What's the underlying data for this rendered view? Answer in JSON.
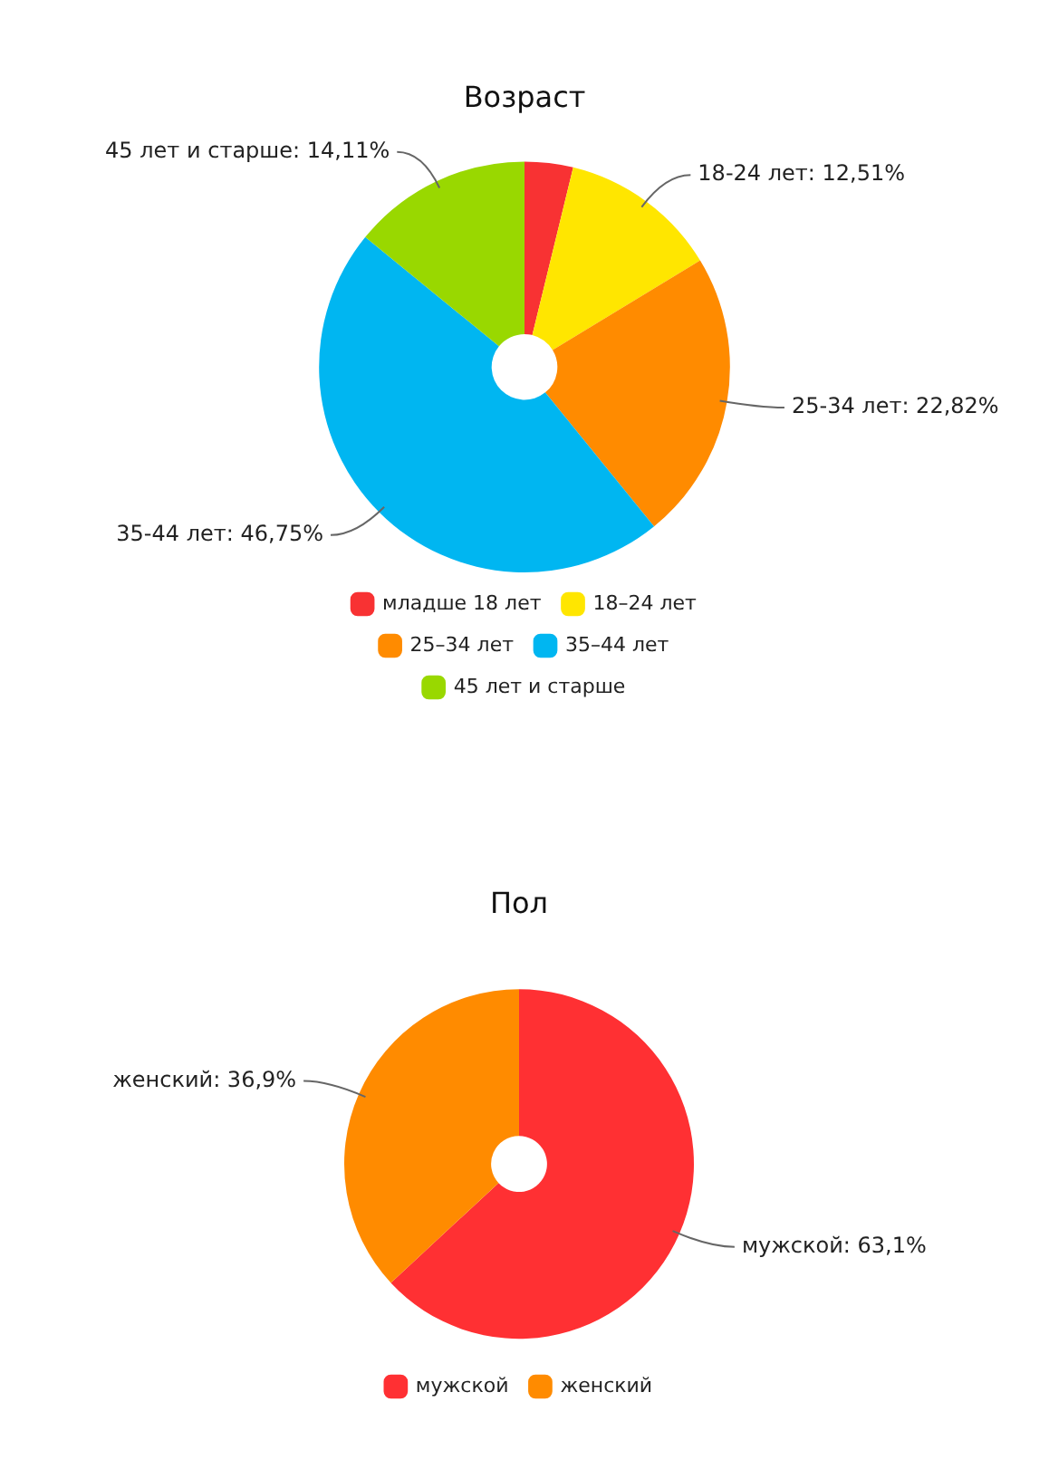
{
  "chart_data": [
    {
      "type": "donut",
      "title": "Возраст",
      "categories": [
        "младше 18 лет",
        "18–24 лет",
        "25–34 лет",
        "35–44 лет",
        "45 лет и старше"
      ],
      "values": [
        3.81,
        12.51,
        22.82,
        46.75,
        14.11
      ],
      "colors": [
        "#f83233",
        "#ffe600",
        "#ff8b00",
        "#00b6f1",
        "#99d800"
      ],
      "value_labels": [
        null,
        "18-24 лет: 12,51%",
        "25-34 лет: 22,82%",
        "35-44 лет: 46,75%",
        "45 лет и старше: 14,11%"
      ],
      "legend": "bottom"
    },
    {
      "type": "donut",
      "title": "Пол",
      "categories": [
        "мужской",
        "женский"
      ],
      "values": [
        63.1,
        36.9
      ],
      "colors": [
        "#ff3033",
        "#ff8b00"
      ],
      "value_labels": [
        "мужской: 63,1%",
        "женский: 36,9%"
      ],
      "legend": "bottom"
    }
  ]
}
